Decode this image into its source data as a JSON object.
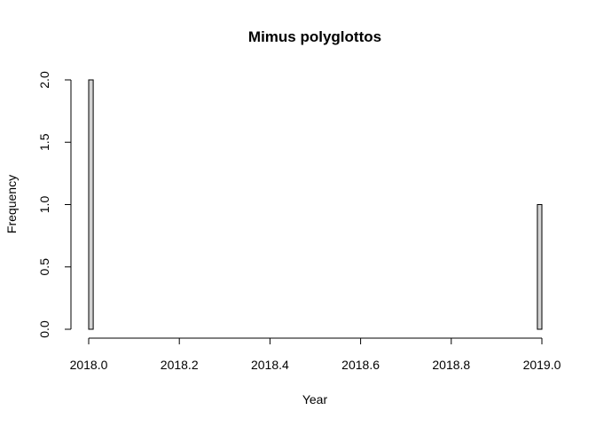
{
  "chart_data": {
    "type": "bar",
    "title": "Mimus polyglottos",
    "xlabel": "Year",
    "ylabel": "Frequency",
    "xlim": [
      2018.0,
      2019.0
    ],
    "ylim": [
      0,
      2.0
    ],
    "x_ticks": [
      "2018.0",
      "2018.2",
      "2018.4",
      "2018.6",
      "2018.8",
      "2019.0"
    ],
    "y_ticks": [
      "0.0",
      "0.5",
      "1.0",
      "1.5",
      "2.0"
    ],
    "bin_width": 0.01,
    "bins_start": 2018.0,
    "values": [
      2,
      0,
      0,
      0,
      0,
      0,
      0,
      0,
      0,
      0,
      0,
      0,
      0,
      0,
      0,
      0,
      0,
      0,
      0,
      0,
      0,
      0,
      0,
      0,
      0,
      0,
      0,
      0,
      0,
      0,
      0,
      0,
      0,
      0,
      0,
      0,
      0,
      0,
      0,
      0,
      0,
      0,
      0,
      0,
      0,
      0,
      0,
      0,
      0,
      0,
      0,
      0,
      0,
      0,
      0,
      0,
      0,
      0,
      0,
      0,
      0,
      0,
      0,
      0,
      0,
      0,
      0,
      0,
      0,
      0,
      0,
      0,
      0,
      0,
      0,
      0,
      0,
      0,
      0,
      0,
      0,
      0,
      0,
      0,
      0,
      0,
      0,
      0,
      0,
      0,
      0,
      0,
      0,
      0,
      0,
      0,
      0,
      0,
      0,
      1
    ],
    "bar_fill": "#d3d3d3",
    "bar_stroke": "#000000",
    "grid": false,
    "legend": "none"
  }
}
